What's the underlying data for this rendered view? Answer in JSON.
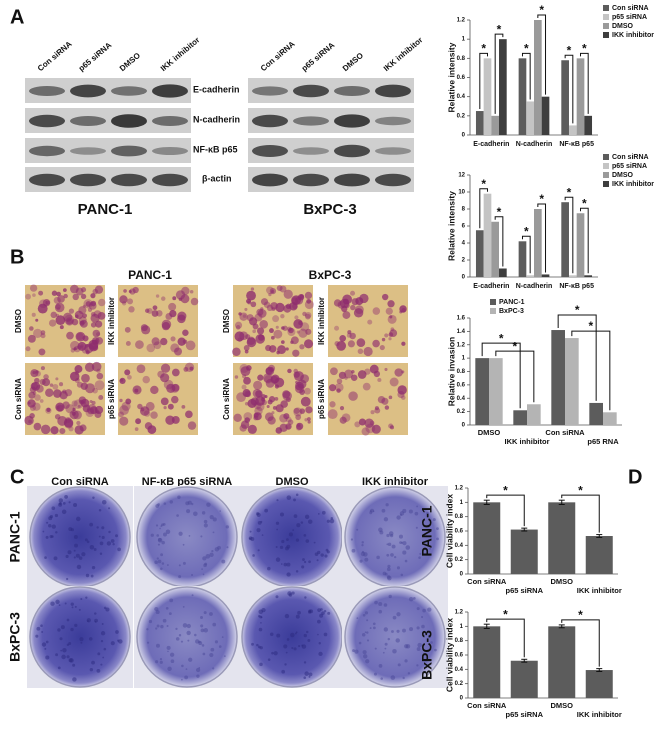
{
  "panel_labels": [
    "A",
    "B",
    "C",
    "D"
  ],
  "blots": {
    "lanes": [
      "Con siRNA",
      "p65 siRNA",
      "DMSO",
      "IKK inhibitor"
    ],
    "proteins": [
      "E-cadherin",
      "N-cadherin",
      "NF-κB p65",
      "β-actin"
    ],
    "cell_lines": [
      "PANC-1",
      "BxPC-3"
    ]
  },
  "invasion_images": {
    "cell_lines": [
      "PANC-1",
      "BxPC-3"
    ],
    "conditions": [
      "DMSO",
      "IKK inhibitor",
      "Con siRNA",
      "p65 siRNA"
    ]
  },
  "colony": {
    "conditions": [
      "Con siRNA",
      "NF-κB p65 siRNA",
      "DMSO",
      "IKK inhibitor"
    ],
    "cell_lines": [
      "PANC-1",
      "BxPC-3"
    ]
  },
  "chart_data": [
    {
      "type": "bar",
      "ylabel": "Relative intensity",
      "categories": [
        "E-cadherin",
        "N-cadherin",
        "NF-κB p65"
      ],
      "series": [
        {
          "name": "Con siRNA",
          "color": "#5c5c5c",
          "values": [
            0.25,
            0.8,
            0.78
          ]
        },
        {
          "name": "p65 siRNA",
          "color": "#c4c4c4",
          "values": [
            0.8,
            0.35,
            0.1
          ]
        },
        {
          "name": "DMSO",
          "color": "#9a9a9a",
          "values": [
            0.2,
            1.2,
            0.8
          ]
        },
        {
          "name": "IKK inhibitor",
          "color": "#3e3e3e",
          "values": [
            1.0,
            0.4,
            0.2
          ]
        }
      ],
      "ylim": [
        0,
        1.2
      ],
      "yticks": [
        0,
        0.2,
        0.4,
        0.6,
        0.8,
        1,
        1.2
      ],
      "legend": "right",
      "annotations": [
        "*",
        "*",
        "*",
        "*",
        "*",
        "*"
      ]
    },
    {
      "type": "bar",
      "ylabel": "Relative intensity",
      "categories": [
        "E-cadherin",
        "N-cadherin",
        "NF-κB p65"
      ],
      "series": [
        {
          "name": "Con siRNA",
          "color": "#5c5c5c",
          "values": [
            5.5,
            4.2,
            8.8
          ]
        },
        {
          "name": "p65 siRNA",
          "color": "#c4c4c4",
          "values": [
            9.8,
            0.2,
            0.2
          ]
        },
        {
          "name": "DMSO",
          "color": "#9a9a9a",
          "values": [
            6.5,
            8.0,
            7.5
          ]
        },
        {
          "name": "IKK inhibitor",
          "color": "#3e3e3e",
          "values": [
            1.0,
            0.3,
            0.2
          ]
        }
      ],
      "ylim": [
        0,
        12
      ],
      "yticks": [
        0,
        2,
        4,
        6,
        8,
        10,
        12
      ],
      "legend": "right",
      "annotations": [
        "*",
        "*",
        "*",
        "*",
        "*",
        "*"
      ]
    },
    {
      "type": "bar",
      "ylabel": "Relative invasion",
      "categories": [
        "DMSO",
        "IKK inhibitor",
        "Con siRNA",
        "p65 RNA"
      ],
      "series": [
        {
          "name": "PANC-1",
          "color": "#5c5c5c",
          "values": [
            1.0,
            0.22,
            1.42,
            0.33
          ]
        },
        {
          "name": "BxPC-3",
          "color": "#b4b4b4",
          "values": [
            1.0,
            0.31,
            1.3,
            0.19
          ]
        }
      ],
      "ylim": [
        0,
        1.6
      ],
      "yticks": [
        0,
        0.2,
        0.4,
        0.6,
        0.8,
        1,
        1.2,
        1.4,
        1.6
      ],
      "legend": "top",
      "annotations": [
        "*",
        "*",
        "*",
        "*"
      ]
    },
    {
      "type": "bar",
      "title": "PANC-1",
      "ylabel": "Cell viability index",
      "categories": [
        "Con siRNA",
        "p65 siRNA",
        "DMSO",
        "IKK inhibitor"
      ],
      "values": [
        1.0,
        0.62,
        1.0,
        0.53
      ],
      "errors": [
        0.03,
        0.02,
        0.03,
        0.02
      ],
      "color": "#5c5c5c",
      "ylim": [
        0,
        1.2
      ],
      "yticks": [
        0,
        0.2,
        0.4,
        0.6,
        0.8,
        1,
        1.2
      ],
      "annotations": [
        "*",
        "*"
      ]
    },
    {
      "type": "bar",
      "title": "BxPC-3",
      "ylabel": "Cell viability index",
      "categories": [
        "Con siRNA",
        "p65 siRNA",
        "DMSO",
        "IKK inhibitor"
      ],
      "values": [
        1.0,
        0.52,
        1.0,
        0.39
      ],
      "errors": [
        0.03,
        0.02,
        0.02,
        0.02
      ],
      "color": "#5c5c5c",
      "ylim": [
        0,
        1.2
      ],
      "yticks": [
        0,
        0.2,
        0.4,
        0.6,
        0.8,
        1,
        1.2
      ],
      "annotations": [
        "*",
        "*"
      ]
    }
  ]
}
